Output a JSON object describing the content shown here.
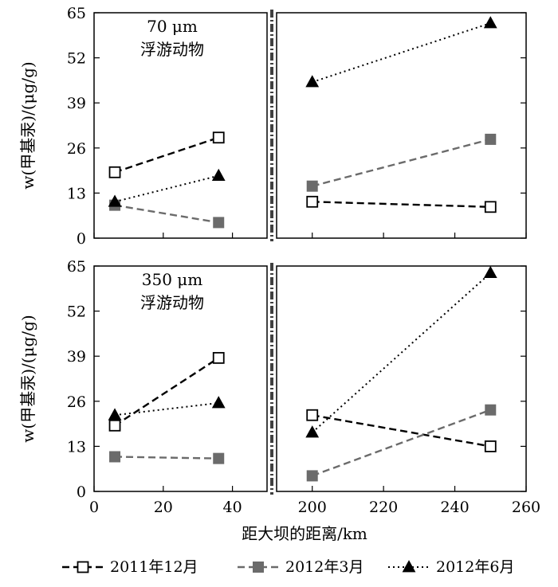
{
  "chart_data": {
    "type": "line",
    "ylabel": "w(甲基汞)/(μg/g)",
    "xlabel": "距大坝的距离/km",
    "yticks": [
      0,
      13,
      26,
      39,
      52,
      65
    ],
    "ylim": [
      0,
      65
    ],
    "x_segments": [
      {
        "range": [
          0,
          50
        ],
        "ticks": [
          0,
          20,
          40
        ]
      },
      {
        "range": [
          190,
          260
        ],
        "ticks": [
          200,
          220,
          240,
          260
        ]
      }
    ],
    "axis_break": "between x=50 and x=190",
    "legend": {
      "placement": "bottom",
      "entries": [
        "2011年12月",
        "2012年3月",
        "2012年6月"
      ]
    },
    "series_styles": [
      {
        "name": "2011年12月",
        "marker": "open-square",
        "line": "dashed",
        "color": "#000000"
      },
      {
        "name": "2012年3月",
        "marker": "filled-square",
        "line": "dashed",
        "color": "#6b6b6b"
      },
      {
        "name": "2012年6月",
        "marker": "filled-triangle",
        "line": "dotted",
        "color": "#000000"
      }
    ],
    "panels": [
      {
        "annotation": [
          "70 μm",
          "浮游动物"
        ],
        "series": [
          {
            "name": "2011年12月",
            "points": [
              [
                6,
                19
              ],
              [
                36,
                29
              ],
              [
                200,
                10.5
              ],
              [
                250,
                9
              ]
            ]
          },
          {
            "name": "2012年3月",
            "points": [
              [
                6,
                9.5
              ],
              [
                36,
                4.5
              ],
              [
                200,
                15
              ],
              [
                250,
                28.5
              ]
            ]
          },
          {
            "name": "2012年6月",
            "points": [
              [
                6,
                10.5
              ],
              [
                36,
                18
              ],
              [
                200,
                45
              ],
              [
                250,
                62
              ]
            ]
          }
        ]
      },
      {
        "annotation": [
          "350 μm",
          "浮游动物"
        ],
        "series": [
          {
            "name": "2011年12月",
            "points": [
              [
                6,
                19
              ],
              [
                36,
                38.5
              ],
              [
                200,
                22
              ],
              [
                250,
                13
              ]
            ]
          },
          {
            "name": "2012年3月",
            "points": [
              [
                6,
                10
              ],
              [
                36,
                9.5
              ],
              [
                200,
                4.5
              ],
              [
                250,
                23.5
              ]
            ]
          },
          {
            "name": "2012年6月",
            "points": [
              [
                6,
                22
              ],
              [
                36,
                25.5
              ],
              [
                200,
                17
              ],
              [
                250,
                63
              ]
            ]
          }
        ]
      }
    ]
  }
}
